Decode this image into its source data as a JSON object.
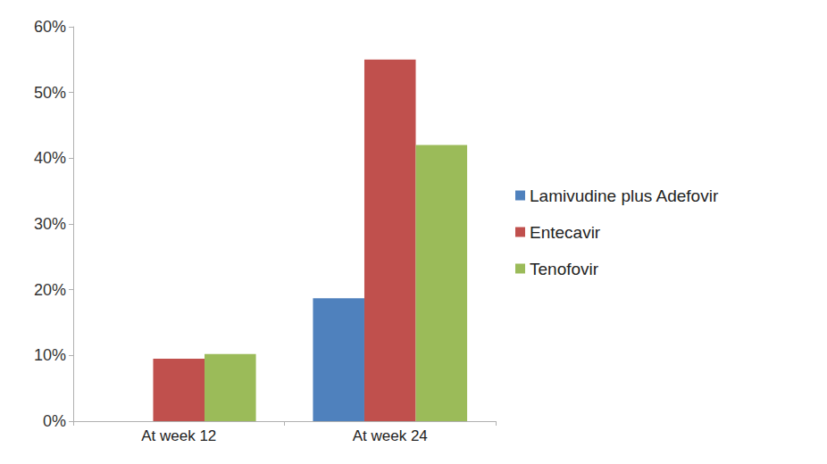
{
  "chart_data": {
    "type": "bar",
    "categories": [
      "At week 12",
      "At week 24"
    ],
    "series": [
      {
        "name": "Lamivudine plus Adefovir",
        "color": "#4f81bd",
        "values": [
          0,
          18.7
        ]
      },
      {
        "name": "Entecavir",
        "color": "#c0504d",
        "values": [
          9.5,
          55
        ]
      },
      {
        "name": "Tenofovir",
        "color": "#9bbb59",
        "values": [
          10.2,
          42
        ]
      }
    ],
    "ylim": [
      0,
      60
    ],
    "yticks": [
      {
        "value": 0,
        "label": "0%"
      },
      {
        "value": 10,
        "label": "10%"
      },
      {
        "value": 20,
        "label": "20%"
      },
      {
        "value": 30,
        "label": "30%"
      },
      {
        "value": 40,
        "label": "40%"
      },
      {
        "value": 50,
        "label": "50%"
      },
      {
        "value": 60,
        "label": "60%"
      }
    ],
    "grid": false,
    "legend": "right"
  }
}
